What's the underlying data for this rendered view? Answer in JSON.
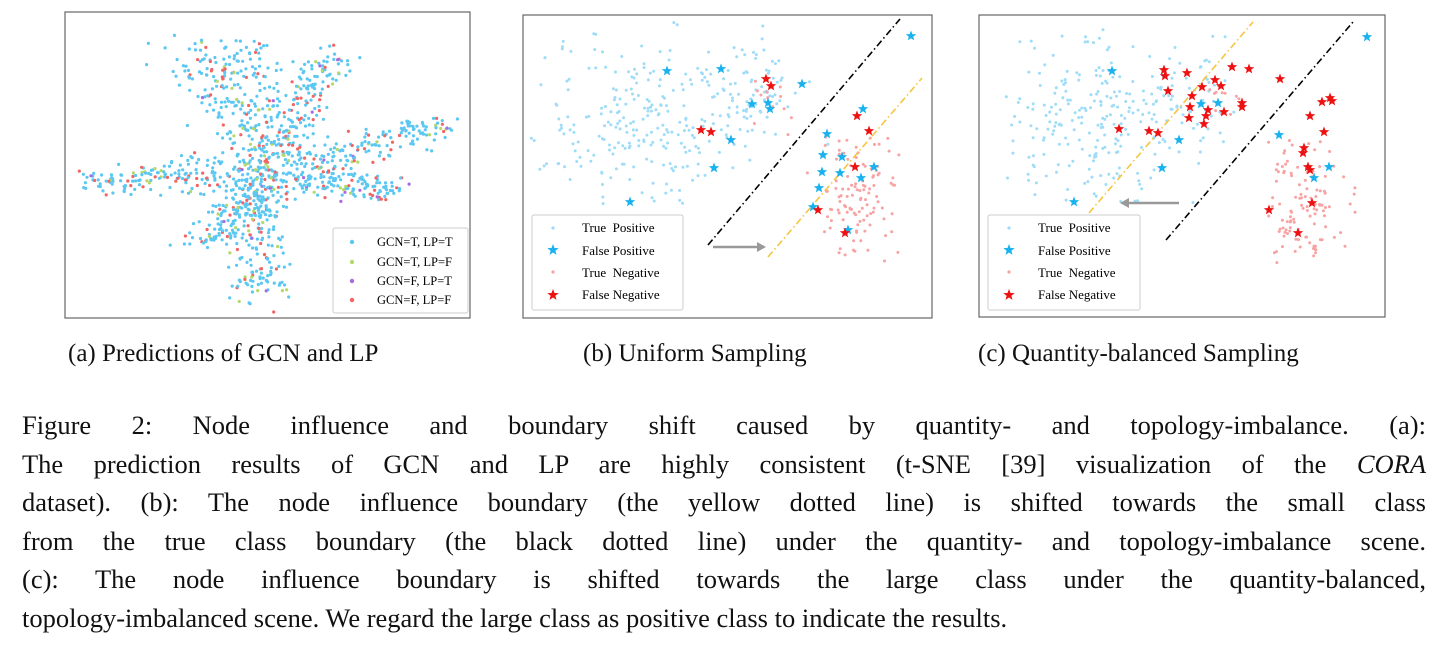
{
  "panels": [
    {
      "caption": "(a) Predictions of GCN and LP",
      "legend": [
        "GCN=T, LP=T",
        "GCN=T, LP=F",
        "GCN=F, LP=T",
        "GCN=F, LP=F"
      ],
      "legend_colors": [
        "#5cc8f2",
        "#b5d86a",
        "#a86be0",
        "#f26565"
      ]
    },
    {
      "caption": "(b) Uniform Sampling",
      "legend": [
        "True  Positive",
        "False Positive",
        "True  Negative",
        "False Negative"
      ],
      "boundary_shift": "towards small class"
    },
    {
      "caption": "(c) Quantity-balanced Sampling",
      "legend": [
        "True  Positive",
        "False Positive",
        "True  Negative",
        "False Negative"
      ],
      "boundary_shift": "towards large class"
    }
  ],
  "marker_colors": {
    "true_positive": "#9fdcf7",
    "false_positive": "#19b2ee",
    "true_negative": "#f7a3a3",
    "false_negative": "#ee1111",
    "true_boundary": "#000000",
    "influence_boundary": "#f5c542",
    "arrow": "#999999"
  },
  "caption": {
    "lines": [
      "Figure 2:  Node influence and boundary shift caused by quantity- and topology-imbalance.  (a):",
      "The prediction results of GCN and LP are highly consistent (t-SNE [39] visualization of the",
      "dataset). (b): The node influence boundary (the yellow dotted line) is shifted towards the small class",
      "from the true class boundary (the black dotted line) under the quantity- and topology-imbalance scene.",
      "(c):  The node influence boundary is shifted towards the large class under the quantity-balanced,",
      "topology-imbalanced scene. We regard the large class as positive class to indicate the results."
    ],
    "dataset_name": "CORA"
  }
}
